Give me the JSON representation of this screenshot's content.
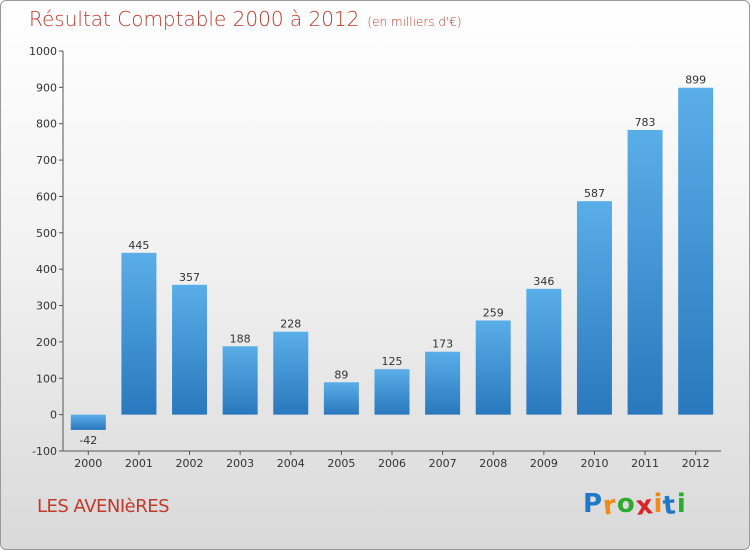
{
  "chart_data": {
    "type": "bar",
    "title": "Résultat Comptable 2000 à 2012",
    "subtitle": "(en milliers d'€)",
    "categories": [
      "2000",
      "2001",
      "2002",
      "2003",
      "2004",
      "2005",
      "2006",
      "2007",
      "2008",
      "2009",
      "2010",
      "2011",
      "2012"
    ],
    "values": [
      -42,
      445,
      357,
      188,
      228,
      89,
      125,
      173,
      259,
      346,
      587,
      783,
      899
    ],
    "ylim": [
      -100,
      1000
    ],
    "yticks": [
      -100,
      0,
      100,
      200,
      300,
      400,
      500,
      600,
      700,
      800,
      900,
      1000
    ],
    "xlabel": "",
    "ylabel": "",
    "grid": false,
    "colors": {
      "bar_top": "#5aaee8",
      "bar_bottom": "#2a78bd",
      "title": "#c0392b"
    }
  },
  "location": "LES AVENIèRES",
  "logo": {
    "letters": [
      "P",
      "r",
      "o",
      "x",
      "i",
      "t",
      "i"
    ],
    "colors": [
      "#1f78c8",
      "#f08a1c",
      "#2eaa2e",
      "#d9262c",
      "#f08a1c",
      "#1f78c8",
      "#2eaa2e"
    ]
  }
}
